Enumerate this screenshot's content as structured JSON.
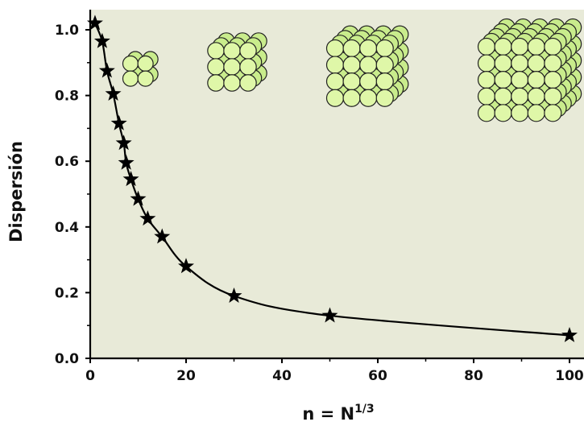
{
  "chart_data": {
    "type": "line",
    "xlabel": "n = N",
    "xlabel_superscript": "1/3",
    "ylabel": "Dispersión",
    "xlim": [
      0,
      103
    ],
    "ylim": [
      0,
      1.05
    ],
    "xticks": [
      "0",
      "20",
      "40",
      "60",
      "80",
      "100"
    ],
    "yticks": [
      "0.0",
      "0.2",
      "0.4",
      "0.6",
      "0.8",
      "1.0"
    ],
    "grid": false,
    "marker": "star",
    "background_color": "#e8ead8",
    "line_color": "#000000",
    "series": [
      {
        "x": [
          1,
          2.5,
          3.5,
          4.8,
          6,
          7,
          7.5,
          8.5,
          10,
          12,
          15,
          20,
          30,
          50,
          100
        ],
        "values": [
          1.02,
          0.965,
          0.875,
          0.805,
          0.715,
          0.655,
          0.595,
          0.545,
          0.485,
          0.425,
          0.37,
          0.28,
          0.19,
          0.13,
          0.07
        ]
      }
    ],
    "illustrations": [
      {
        "name": "cluster-2",
        "size": 2
      },
      {
        "name": "cluster-3",
        "size": 3
      },
      {
        "name": "cluster-4",
        "size": 4
      },
      {
        "name": "cluster-5",
        "size": 5
      }
    ]
  }
}
